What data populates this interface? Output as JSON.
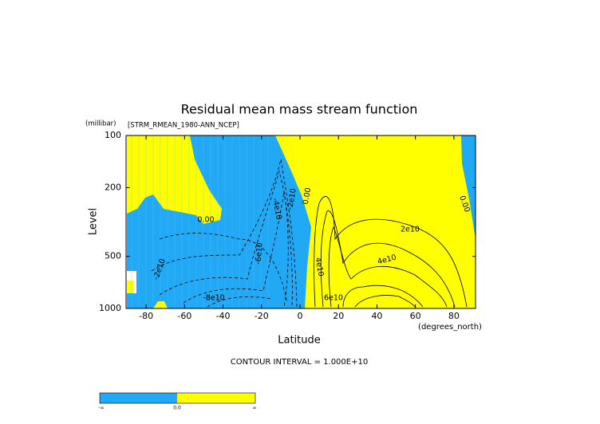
{
  "chart_data": {
    "type": "contour",
    "title": "Residual mean mass stream function",
    "subtitle": "[STRM_RMEAN_1980-ANN_NCEP]",
    "y_unit": "(millibar)",
    "ylabel": "Level",
    "xlabel": "Latitude",
    "x_unit": "(degrees_north)",
    "xlim": [
      -90,
      90
    ],
    "xticks": [
      -80,
      -60,
      -40,
      -20,
      0,
      20,
      40,
      60,
      80
    ],
    "ylim": [
      1000,
      100
    ],
    "yticks": [
      100,
      200,
      500,
      1000
    ],
    "yscale": "log",
    "note": "CONTOUR INTERVAL = 1.000E+10",
    "contour_labels": [
      "0.00",
      "-2e10",
      "-4e10",
      "-6e10",
      "-8e10",
      "-2e10",
      "0.00",
      "4e10",
      "6e10",
      "4e10",
      "2e10",
      "0.00"
    ],
    "fill_colors": [
      "#21a9f5",
      "#ffff00"
    ],
    "colorbar_labels": [
      "-∞",
      "0.0",
      "∞"
    ]
  }
}
